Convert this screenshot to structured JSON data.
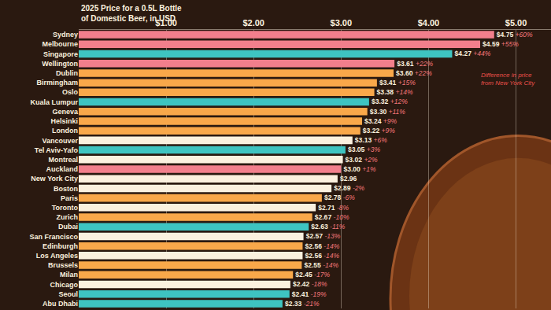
{
  "chart_data": {
    "type": "bar",
    "title": "2025 Price for a 0.5L Bottle of Domestic Beer, in USD",
    "orientation": "horizontal",
    "data_labels": true,
    "grid": true,
    "categories": [
      "Sydney",
      "Melbourne",
      "Singapore",
      "Wellington",
      "Dublin",
      "Birmingham",
      "Oslo",
      "Kuala Lumpur",
      "Geneva",
      "Helsinki",
      "London",
      "Vancouver",
      "Tel Aviv-Yafo",
      "Montreal",
      "Auckland",
      "New York City",
      "Boston",
      "Paris",
      "Toronto",
      "Zurich",
      "Dubai",
      "San Francisco",
      "Edinburgh",
      "Los Angeles",
      "Brussels",
      "Milan",
      "Chicago",
      "Seoul",
      "Abu Dhabi"
    ],
    "values": [
      4.75,
      4.59,
      4.27,
      3.61,
      3.6,
      3.41,
      3.38,
      3.32,
      3.3,
      3.24,
      3.22,
      3.13,
      3.05,
      3.02,
      3.0,
      2.96,
      2.89,
      2.78,
      2.71,
      2.67,
      2.63,
      2.57,
      2.56,
      2.56,
      2.55,
      2.45,
      2.42,
      2.41,
      2.33
    ],
    "value_labels": [
      "$4.75",
      "$4.59",
      "$4.27",
      "$3.61",
      "$3.60",
      "$3.41",
      "$3.38",
      "$3.32",
      "$3.30",
      "$3.24",
      "$3.22",
      "$3.13",
      "$3.05",
      "$3.02",
      "$3.00",
      "$2.96",
      "$2.89",
      "$2.78",
      "$2.71",
      "$2.67",
      "$2.63",
      "$2.57",
      "$2.56",
      "$2.56",
      "$2.55",
      "$2.45",
      "$2.42",
      "$2.41",
      "$2.33"
    ],
    "differences": [
      60,
      55,
      44,
      22,
      22,
      15,
      14,
      12,
      11,
      9,
      9,
      6,
      3,
      2,
      1,
      null,
      -2,
      -6,
      -8,
      -10,
      -11,
      -13,
      -14,
      -14,
      -14,
      -17,
      -18,
      -19,
      -21
    ],
    "difference_labels": [
      "+60%",
      "+55%",
      "+44%",
      "+22%",
      "+22%",
      "+15%",
      "+14%",
      "+12%",
      "+11%",
      "+9%",
      "+9%",
      "+6%",
      "+3%",
      "+2%",
      "+1%",
      null,
      "-2%",
      "-6%",
      "-8%",
      "-10%",
      "-11%",
      "-13%",
      "-14%",
      "-14%",
      "-14%",
      "-17%",
      "-18%",
      "-19%",
      "-21%"
    ],
    "colors": [
      "#f27f8c",
      "#f27f8c",
      "#3ec4c1",
      "#f27f8c",
      "#f9a84a",
      "#f9a84a",
      "#f9a84a",
      "#3ec4c1",
      "#f9a84a",
      "#f9a84a",
      "#f9a84a",
      "#fbf1df",
      "#3ec4c1",
      "#fbf1df",
      "#f27f8c",
      "#fbf1df",
      "#fbf1df",
      "#f9a84a",
      "#fbf1df",
      "#f9a84a",
      "#3ec4c1",
      "#fbf1df",
      "#f9a84a",
      "#fbf1df",
      "#f9a84a",
      "#f9a84a",
      "#fbf1df",
      "#3ec4c1",
      "#3ec4c1"
    ],
    "xlim": [
      0,
      5.4
    ],
    "xticks": [
      {
        "value": 1,
        "label": "$1.00"
      },
      {
        "value": 2,
        "label": "$2.00"
      },
      {
        "value": 3,
        "label": "$3.00"
      },
      {
        "value": 4,
        "label": "$4.00"
      },
      {
        "value": 5,
        "label": "$5.00"
      }
    ],
    "annotations": [
      {
        "text": "Difference in price from New York City"
      }
    ]
  }
}
